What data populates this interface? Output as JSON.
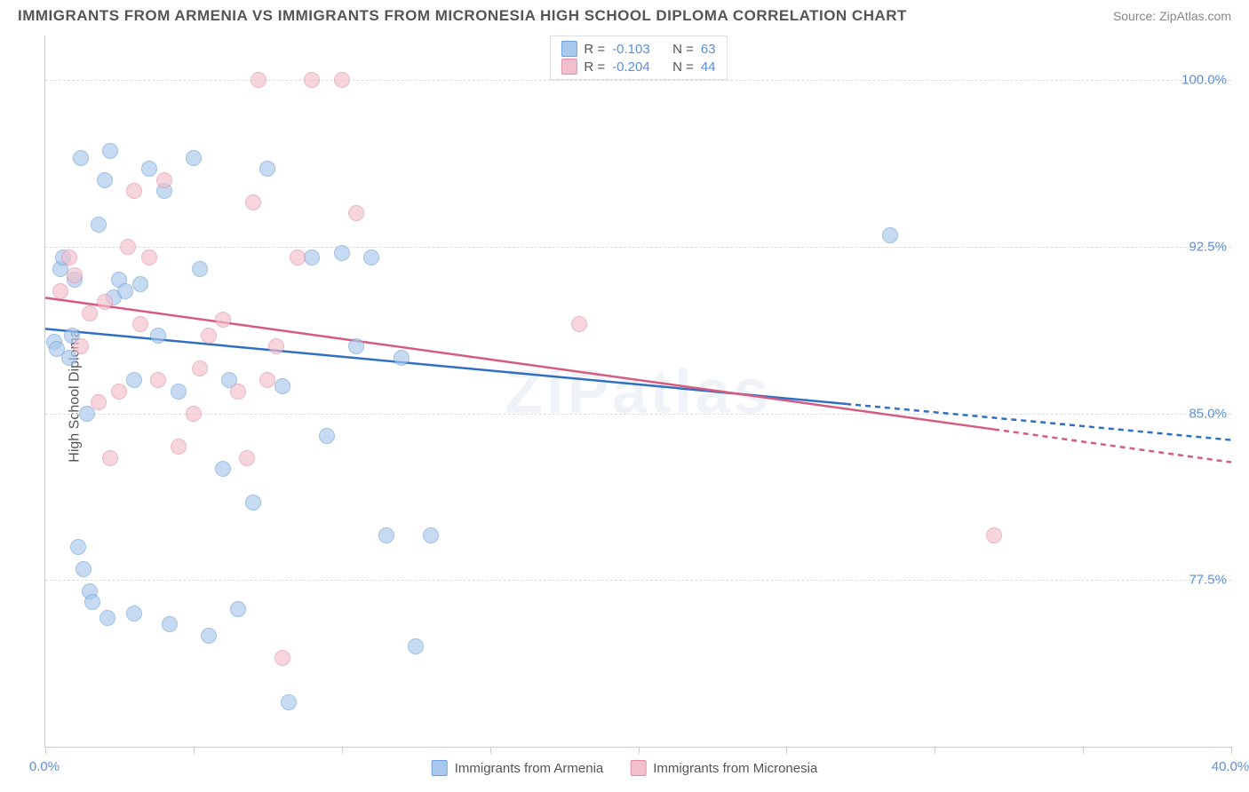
{
  "title": "IMMIGRANTS FROM ARMENIA VS IMMIGRANTS FROM MICRONESIA HIGH SCHOOL DIPLOMA CORRELATION CHART",
  "source": "Source: ZipAtlas.com",
  "watermark": "ZIPatlas",
  "ylabel": "High School Diploma",
  "chart": {
    "type": "scatter",
    "background_color": "#ffffff",
    "grid_color": "#dddddd",
    "xlim": [
      0,
      40
    ],
    "ylim": [
      70,
      102
    ],
    "x_ticks": [
      0,
      5,
      10,
      15,
      20,
      25,
      30,
      35,
      40
    ],
    "x_tick_labels": {
      "0": "0.0%",
      "40": "40.0%"
    },
    "y_ticks": [
      77.5,
      85.0,
      92.5,
      100.0
    ],
    "y_tick_labels": [
      "77.5%",
      "85.0%",
      "92.5%",
      "100.0%"
    ],
    "marker_radius": 9,
    "series": [
      {
        "name": "Immigrants from Armenia",
        "fill": "#a8c8ec",
        "stroke": "#6d9fd8",
        "line_color": "#2f6fc4",
        "r": "-0.103",
        "n": "63",
        "trend": {
          "x1": 0,
          "y1": 88.8,
          "x2": 40,
          "y2": 83.8,
          "dash_after_x": 27
        },
        "points": [
          [
            0.3,
            88.2
          ],
          [
            0.4,
            87.9
          ],
          [
            0.5,
            91.5
          ],
          [
            0.6,
            92.0
          ],
          [
            0.8,
            87.5
          ],
          [
            0.9,
            88.5
          ],
          [
            1.0,
            91.0
          ],
          [
            1.1,
            79.0
          ],
          [
            1.2,
            96.5
          ],
          [
            1.3,
            78.0
          ],
          [
            1.4,
            85.0
          ],
          [
            1.5,
            77.0
          ],
          [
            1.6,
            76.5
          ],
          [
            1.8,
            93.5
          ],
          [
            2.0,
            95.5
          ],
          [
            2.1,
            75.8
          ],
          [
            2.2,
            96.8
          ],
          [
            2.3,
            90.2
          ],
          [
            2.5,
            91.0
          ],
          [
            2.7,
            90.5
          ],
          [
            3.0,
            86.5
          ],
          [
            3.0,
            76.0
          ],
          [
            3.2,
            90.8
          ],
          [
            3.5,
            96.0
          ],
          [
            3.8,
            88.5
          ],
          [
            4.0,
            95.0
          ],
          [
            4.2,
            75.5
          ],
          [
            4.5,
            86.0
          ],
          [
            5.0,
            96.5
          ],
          [
            5.2,
            91.5
          ],
          [
            5.5,
            75.0
          ],
          [
            6.0,
            82.5
          ],
          [
            6.2,
            86.5
          ],
          [
            6.5,
            76.2
          ],
          [
            7.0,
            81.0
          ],
          [
            7.5,
            96.0
          ],
          [
            8.0,
            86.2
          ],
          [
            8.2,
            72.0
          ],
          [
            9.0,
            92.0
          ],
          [
            9.5,
            84.0
          ],
          [
            10.0,
            92.2
          ],
          [
            10.5,
            88.0
          ],
          [
            11.0,
            92.0
          ],
          [
            11.5,
            79.5
          ],
          [
            12.0,
            87.5
          ],
          [
            12.5,
            74.5
          ],
          [
            13.0,
            79.5
          ],
          [
            28.5,
            93.0
          ]
        ]
      },
      {
        "name": "Immigrants from Micronesia",
        "fill": "#f2c0cc",
        "stroke": "#e290a8",
        "line_color": "#d65b7e",
        "r": "-0.204",
        "n": "44",
        "trend": {
          "x1": 0,
          "y1": 90.2,
          "x2": 40,
          "y2": 82.8,
          "dash_after_x": 32
        },
        "points": [
          [
            0.5,
            90.5
          ],
          [
            0.8,
            92.0
          ],
          [
            1.0,
            91.2
          ],
          [
            1.2,
            88.0
          ],
          [
            1.5,
            89.5
          ],
          [
            1.8,
            85.5
          ],
          [
            2.0,
            90.0
          ],
          [
            2.2,
            83.0
          ],
          [
            2.5,
            86.0
          ],
          [
            2.8,
            92.5
          ],
          [
            3.0,
            95.0
          ],
          [
            3.2,
            89.0
          ],
          [
            3.5,
            92.0
          ],
          [
            3.8,
            86.5
          ],
          [
            4.0,
            95.5
          ],
          [
            4.5,
            83.5
          ],
          [
            5.0,
            85.0
          ],
          [
            5.2,
            87.0
          ],
          [
            5.5,
            88.5
          ],
          [
            6.0,
            89.2
          ],
          [
            6.5,
            86.0
          ],
          [
            6.8,
            83.0
          ],
          [
            7.0,
            94.5
          ],
          [
            7.2,
            100.0
          ],
          [
            7.5,
            86.5
          ],
          [
            7.8,
            88.0
          ],
          [
            8.0,
            74.0
          ],
          [
            8.5,
            92.0
          ],
          [
            9.0,
            100.0
          ],
          [
            10.0,
            100.0
          ],
          [
            10.5,
            94.0
          ],
          [
            18.0,
            89.0
          ],
          [
            32.0,
            79.5
          ]
        ]
      }
    ]
  },
  "legend_labels": {
    "r_label": "R =",
    "n_label": "N ="
  }
}
